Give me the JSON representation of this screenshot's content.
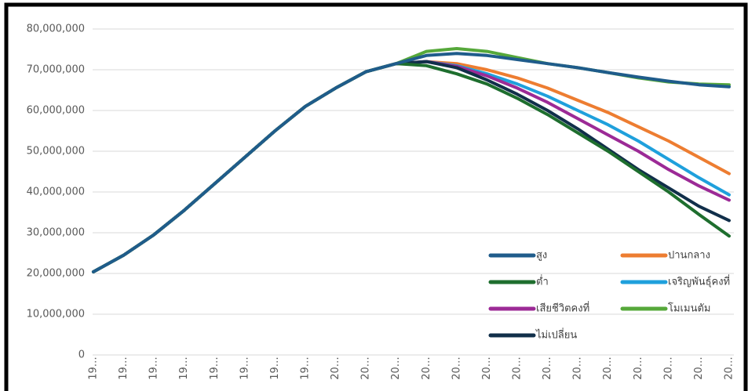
{
  "chart_data": {
    "type": "line",
    "categories": [
      "19…",
      "19…",
      "19…",
      "19…",
      "19…",
      "19…",
      "19…",
      "19…",
      "20…",
      "20…",
      "20…",
      "20…",
      "20…",
      "20…",
      "20…",
      "20…",
      "20…",
      "20…",
      "20…",
      "20…",
      "20…",
      "20…"
    ],
    "ylim": [
      0,
      80000000
    ],
    "yticks": [
      {
        "value": 0,
        "label": "0"
      },
      {
        "value": 10000000,
        "label": "10,000,000"
      },
      {
        "value": 20000000,
        "label": "20,000,000"
      },
      {
        "value": 30000000,
        "label": "30,000,000"
      },
      {
        "value": 40000000,
        "label": "40,000,000"
      },
      {
        "value": 50000000,
        "label": "50,000,000"
      },
      {
        "value": 60000000,
        "label": "60,000,000"
      },
      {
        "value": 70000000,
        "label": "70,000,000"
      },
      {
        "value": 80000000,
        "label": "80,000,000"
      }
    ],
    "grid": true,
    "legend": "bottom-right",
    "series": [
      {
        "name": "ปานกลาง",
        "color": "#ed7d31",
        "values": [
          20400000,
          24500000,
          29500000,
          35500000,
          42000000,
          48500000,
          55000000,
          61000000,
          65500000,
          69500000,
          71500000,
          72000000,
          71500000,
          70000000,
          68000000,
          65500000,
          62500000,
          59500000,
          56000000,
          52500000,
          48500000,
          44500000
        ]
      },
      {
        "name": "เจริญพันธุ์คงที่",
        "color": "#1fa0dc",
        "values": [
          20400000,
          24500000,
          29500000,
          35500000,
          42000000,
          48500000,
          55000000,
          61000000,
          65500000,
          69500000,
          71500000,
          72000000,
          71000000,
          69000000,
          66500000,
          63500000,
          60000000,
          56500000,
          52500000,
          48000000,
          43500000,
          39300000
        ]
      },
      {
        "name": "เสียชีวิตคงที่",
        "color": "#9c2a96",
        "values": [
          20400000,
          24500000,
          29500000,
          35500000,
          42000000,
          48500000,
          55000000,
          61000000,
          65500000,
          69500000,
          71500000,
          72000000,
          70800000,
          68500000,
          65500000,
          62000000,
          58000000,
          54000000,
          50000000,
          45500000,
          41500000,
          38000000
        ]
      },
      {
        "name": "ไม่เปลี่ยน",
        "color": "#112f4a",
        "values": [
          20400000,
          24500000,
          29500000,
          35500000,
          42000000,
          48500000,
          55000000,
          61000000,
          65500000,
          69500000,
          71500000,
          72000000,
          70500000,
          67500000,
          64000000,
          60000000,
          55500000,
          50500000,
          45500000,
          41000000,
          36500000,
          33000000
        ]
      },
      {
        "name": "ต่ำ",
        "color": "#1e6e2e",
        "values": [
          20400000,
          24500000,
          29500000,
          35500000,
          42000000,
          48500000,
          55000000,
          61000000,
          65500000,
          69500000,
          71500000,
          71000000,
          69000000,
          66500000,
          63000000,
          59000000,
          54500000,
          50000000,
          45000000,
          40000000,
          34500000,
          29200000
        ]
      },
      {
        "name": "โมเมนตัม",
        "color": "#56a83a",
        "values": [
          20400000,
          24500000,
          29500000,
          35500000,
          42000000,
          48500000,
          55000000,
          61000000,
          65500000,
          69500000,
          71500000,
          74500000,
          75200000,
          74500000,
          73000000,
          71500000,
          70500000,
          69300000,
          68000000,
          67000000,
          66500000,
          66300000
        ]
      },
      {
        "name": "สูง",
        "color": "#1f5c8b",
        "values": [
          20400000,
          24500000,
          29500000,
          35500000,
          42000000,
          48500000,
          55000000,
          61000000,
          65500000,
          69500000,
          71500000,
          73500000,
          74000000,
          73500000,
          72500000,
          71500000,
          70500000,
          69300000,
          68200000,
          67200000,
          66300000,
          65800000
        ]
      }
    ]
  }
}
